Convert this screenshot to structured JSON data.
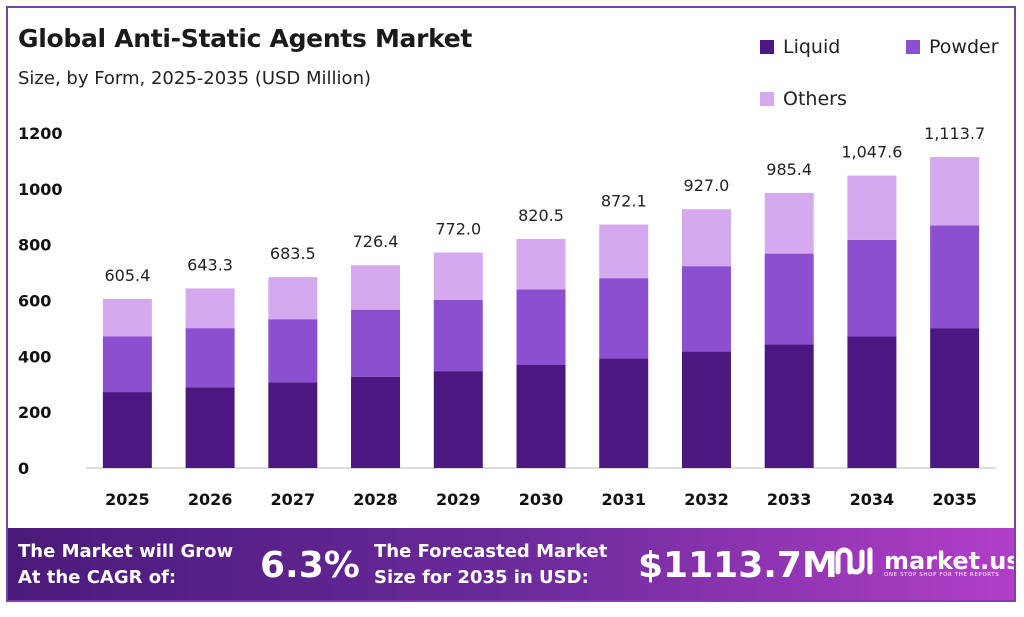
{
  "title": "Global Anti-Static Agents Market",
  "subtitle": "Size, by Form, 2025-2035 (USD Million)",
  "legend": [
    {
      "label": "Liquid",
      "color": "#4b1780"
    },
    {
      "label": "Powder",
      "color": "#8c4fcf"
    },
    {
      "label": "Others",
      "color": "#d4a9ee"
    }
  ],
  "chart_data": {
    "type": "bar",
    "stacked": true,
    "categories": [
      "2025",
      "2026",
      "2027",
      "2028",
      "2029",
      "2030",
      "2031",
      "2032",
      "2033",
      "2034",
      "2035"
    ],
    "series": [
      {
        "name": "Liquid",
        "values": [
          272,
          289,
          307,
          327,
          347,
          369,
          392,
          417,
          443,
          471,
          501
        ]
      },
      {
        "name": "Powder",
        "values": [
          200,
          212,
          226,
          240,
          255,
          271,
          288,
          306,
          325,
          346,
          368
        ]
      },
      {
        "name": "Others",
        "values": [
          133.4,
          142.3,
          150.5,
          159.4,
          170.0,
          180.5,
          192.1,
          204.0,
          217.4,
          230.6,
          244.7
        ]
      }
    ],
    "totals_labels": [
      "605.4",
      "643.3",
      "683.5",
      "726.4",
      "772.0",
      "820.5",
      "872.1",
      "927.0",
      "985.4",
      "1,047.6",
      "1,113.7"
    ],
    "yticks": [
      "0",
      "200",
      "400",
      "600",
      "800",
      "1000",
      "1200"
    ],
    "ylim": [
      0,
      1200
    ],
    "grid": false,
    "legend_position": "top-right",
    "xlabel": "",
    "ylabel": ""
  },
  "banner": {
    "cagr_text_line1": "The Market will Grow",
    "cagr_text_line2": "At the CAGR of:",
    "cagr_value": "6.3%",
    "forecast_text_line1": "The Forecasted Market",
    "forecast_text_line2": "Size for 2035 in USD:",
    "forecast_value": "$1113.7M",
    "brand_name": "market.us",
    "brand_tagline": "ONE STOP SHOP FOR THE REPORTS",
    "brand_logo_icon": "market-us-logo-icon"
  }
}
